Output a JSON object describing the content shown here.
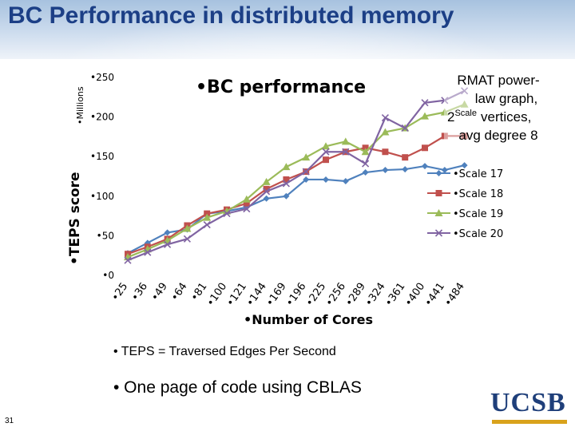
{
  "slide": {
    "title": "BC Performance in distributed memory",
    "bullets": [
      "• TEPS = Traversed Edges Per Second",
      "•  One page of code using CBLAS"
    ],
    "page_number": "31",
    "logo_text": "UCSB",
    "colors": {
      "title": "#1c3f86",
      "logo": "#1f3f7a",
      "logo_bar": "#d9a21b"
    }
  },
  "chart_data": {
    "type": "line",
    "title": "•BC performance",
    "xlabel": "•Number of Cores",
    "ylabel": "•TEPS score",
    "yunit": "•Millions",
    "annotation": [
      "RMAT power-",
      "law graph,",
      "vertices,",
      "avg degree 8"
    ],
    "annotation_math": {
      "base": "2",
      "sup": "Scale"
    },
    "categories": [
      "25",
      "36",
      "49",
      "64",
      "81",
      "100",
      "121",
      "144",
      "169",
      "196",
      "225",
      "256",
      "289",
      "324",
      "361",
      "400",
      "441",
      "484"
    ],
    "ylim": [
      0,
      250
    ],
    "yticks": [
      0,
      50,
      100,
      150,
      200,
      250
    ],
    "ytick_labels": [
      "•0",
      "•50",
      "•100",
      "•150",
      "•200",
      "•250"
    ],
    "xtick_labels": [
      "•25",
      "•36",
      "•49",
      "•64",
      "•81",
      "•100",
      "•121",
      "•144",
      "•169",
      "•196",
      "•225",
      "•256",
      "•289",
      "•324",
      "•361",
      "•400",
      "•441",
      "•484"
    ],
    "grid": false,
    "legend_position": "right",
    "series": [
      {
        "name": "•Scale 17",
        "marker": "diamond",
        "color": "#4f81bd",
        "values": [
          27,
          40,
          53,
          57,
          77,
          80,
          85,
          96,
          99,
          120,
          120,
          118,
          129,
          132,
          133,
          137,
          132,
          138
        ]
      },
      {
        "name": "•Scale 18",
        "marker": "square",
        "color": "#c0504d",
        "values": [
          26,
          35,
          45,
          62,
          77,
          82,
          90,
          108,
          120,
          130,
          145,
          155,
          160,
          155,
          148,
          160,
          175,
          175
        ]
      },
      {
        "name": "•Scale 19",
        "marker": "triangle",
        "color": "#9bbb59",
        "values": [
          22,
          32,
          43,
          58,
          72,
          80,
          95,
          117,
          136,
          148,
          162,
          168,
          155,
          180,
          185,
          200,
          205,
          215
        ]
      },
      {
        "name": "•Scale 20",
        "marker": "x",
        "color": "#8064a2",
        "values": [
          18,
          28,
          38,
          45,
          63,
          77,
          83,
          105,
          115,
          130,
          155,
          155,
          140,
          198,
          185,
          217,
          220,
          232
        ]
      }
    ]
  }
}
